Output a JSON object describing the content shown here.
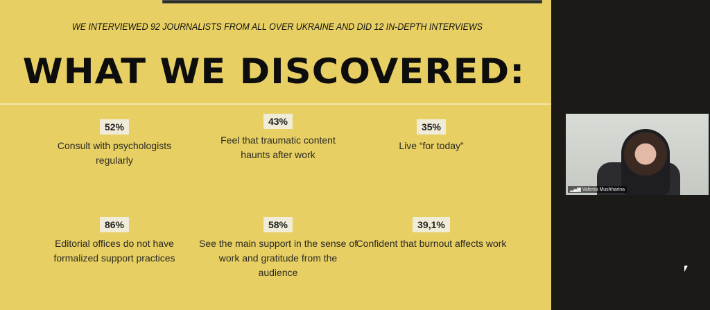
{
  "slide": {
    "subtitle": "WE INTERVIEWED 92 JOURNALISTS FROM ALL OVER UKRAINE AND DID 12 IN-DEPTH INTERVIEWS",
    "title": "WHAT WE DISCOVERED:",
    "stats": [
      {
        "value": "52%",
        "text": "Consult with psychologists regularly"
      },
      {
        "value": "43%",
        "text": "Feel that traumatic content haunts after work"
      },
      {
        "value": "35%",
        "text": "Live “for today”"
      },
      {
        "value": "86%",
        "text": "Editorial offices do not have formalized support practices"
      },
      {
        "value": "58%",
        "text": "See the main support in the sense of work and gratitude from the audience"
      },
      {
        "value": "39,1%",
        "text": "Confident that burnout affects work"
      }
    ]
  },
  "video": {
    "participant_name": "Valeriia Mushharina",
    "icon": "signal-bars-icon"
  },
  "colors": {
    "slide_bg": "#e7cf63",
    "badge_bg": "#f1ecd8",
    "app_bg": "#1b1a17"
  }
}
